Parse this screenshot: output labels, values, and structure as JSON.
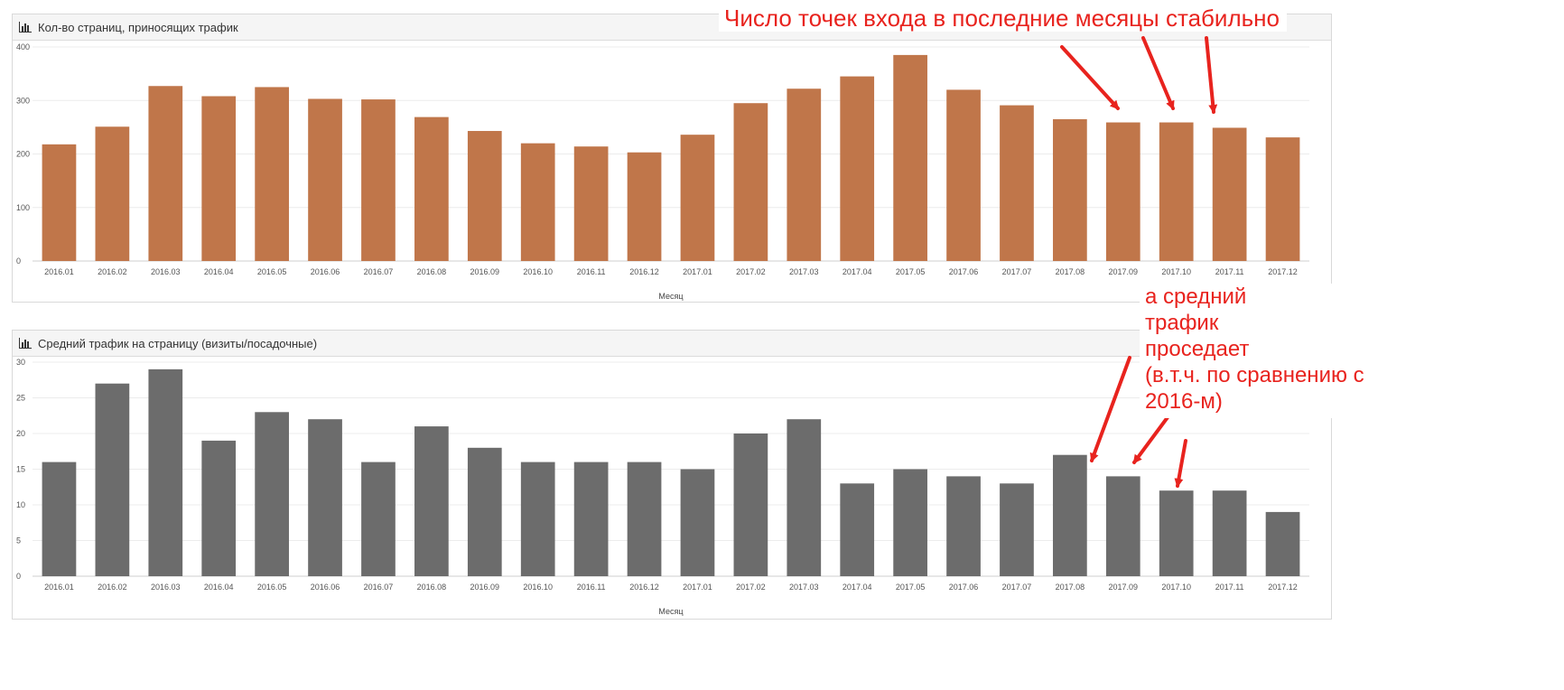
{
  "panels": [
    {
      "title": "Кол-во страниц, приносящих трафик",
      "icon": "bar-chart-icon"
    },
    {
      "title": "Средний трафик на страницу (визиты/посадочные)",
      "icon": "bar-chart-icon"
    }
  ],
  "annotations": {
    "top": "Число точек входа в последние месяцы стабильно",
    "bottom_lines": [
      "а средний",
      "трафик",
      "проседает",
      "(в.т.ч. по сравнению с",
      "2016-м)"
    ],
    "color": "#e8231e"
  },
  "chart_data": [
    {
      "type": "bar",
      "title": "Кол-во страниц, приносящих трафик",
      "xlabel": "Месяц",
      "ylabel": "",
      "ylim": [
        0,
        400
      ],
      "yticks": [
        0,
        100,
        200,
        300,
        400
      ],
      "grid": true,
      "color": "#c0764a",
      "categories": [
        "2016.01",
        "2016.02",
        "2016.03",
        "2016.04",
        "2016.05",
        "2016.06",
        "2016.07",
        "2016.08",
        "2016.09",
        "2016.10",
        "2016.11",
        "2016.12",
        "2017.01",
        "2017.02",
        "2017.03",
        "2017.04",
        "2017.05",
        "2017.06",
        "2017.07",
        "2017.08",
        "2017.09",
        "2017.10",
        "2017.11",
        "2017.12"
      ],
      "values": [
        218,
        251,
        327,
        308,
        325,
        303,
        302,
        269,
        243,
        220,
        214,
        203,
        236,
        295,
        322,
        345,
        385,
        320,
        291,
        265,
        259,
        259,
        249,
        231
      ]
    },
    {
      "type": "bar",
      "title": "Средний трафик на страницу (визиты/посадочные)",
      "xlabel": "Месяц",
      "ylabel": "",
      "ylim": [
        0,
        30
      ],
      "yticks": [
        0,
        5,
        10,
        15,
        20,
        25,
        30
      ],
      "grid": true,
      "color": "#6c6c6c",
      "categories": [
        "2016.01",
        "2016.02",
        "2016.03",
        "2016.04",
        "2016.05",
        "2016.06",
        "2016.07",
        "2016.08",
        "2016.09",
        "2016.10",
        "2016.11",
        "2016.12",
        "2017.01",
        "2017.02",
        "2017.03",
        "2017.04",
        "2017.05",
        "2017.06",
        "2017.07",
        "2017.08",
        "2017.09",
        "2017.10",
        "2017.11",
        "2017.12"
      ],
      "values": [
        16,
        27,
        29,
        19,
        23,
        22,
        16,
        21,
        18,
        16,
        16,
        16,
        15,
        20,
        22,
        13,
        15,
        14,
        13,
        17,
        14,
        12,
        12,
        9
      ]
    }
  ]
}
